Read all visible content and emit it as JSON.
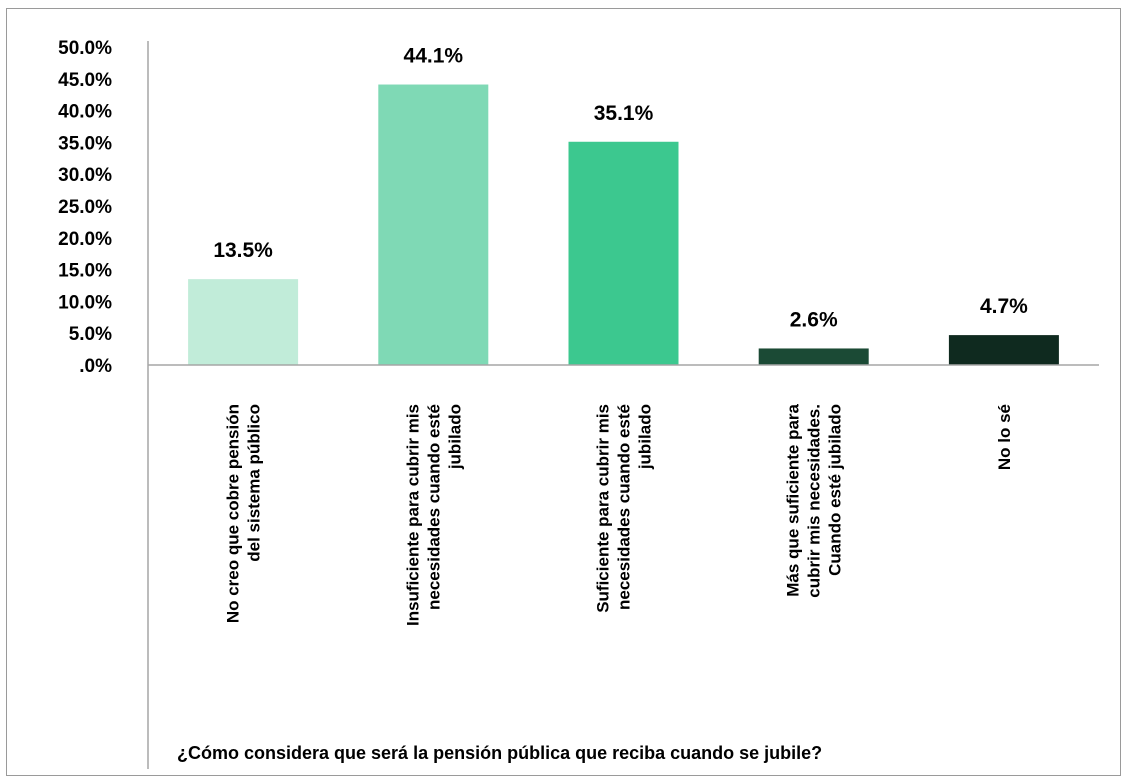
{
  "chart_data": {
    "type": "bar",
    "categories": [
      [
        "No creo que cobre pensión",
        "del sistema público"
      ],
      [
        "Insuficiente para cubrir mis",
        "necesidades cuando esté",
        "jubilado"
      ],
      [
        "Suficiente para cubrir mis",
        "necesidades cuando esté",
        "jubilado"
      ],
      [
        "Más que suficiente para",
        "cubrir mis necesidades.",
        "Cuando esté jubilado"
      ],
      [
        "No lo sé"
      ]
    ],
    "values": [
      13.5,
      44.1,
      35.1,
      2.6,
      4.7
    ],
    "data_labels": [
      "13.5%",
      "44.1%",
      "35.1%",
      "2.6%",
      "4.7%"
    ],
    "ytick_labels": [
      ".0%",
      "5.0%",
      "10.0%",
      "15.0%",
      "20.0%",
      "25.0%",
      "30.0%",
      "35.0%",
      "40.0%",
      "45.0%",
      "50.0%"
    ],
    "ylim": [
      0,
      50
    ],
    "xlabel": "¿Cómo considera que será la pensión pública que reciba cuando se jubile?",
    "title": "",
    "grid": false,
    "bar_colors": [
      "#c1ecd9",
      "#7fd9b5",
      "#3cc88f",
      "#1b4a35",
      "#0f2a1f"
    ]
  }
}
